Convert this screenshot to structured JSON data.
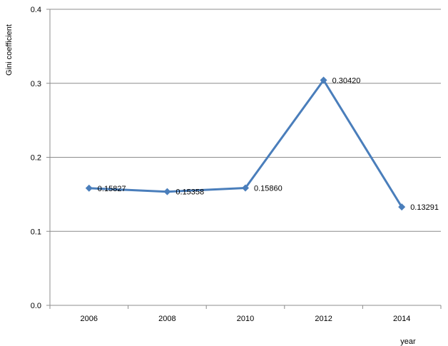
{
  "chart_data": {
    "type": "line",
    "categories": [
      "2006",
      "2008",
      "2010",
      "2012",
      "2014"
    ],
    "series": [
      {
        "values": [
          0.15827,
          0.15358,
          0.1586,
          0.3042,
          0.13291
        ],
        "labels": [
          "0.15827",
          "0.15358",
          "0.15860",
          "0.30420",
          "0.13291"
        ]
      }
    ],
    "xlabel": "year",
    "ylabel": "Gini coefficient",
    "ylim": [
      0.0,
      0.4
    ],
    "yticks": [
      "0.0",
      "0.1",
      "0.2",
      "0.3",
      "0.4"
    ],
    "grid": true,
    "legend": "none",
    "line_color": "#4a7ebb",
    "grid_color": "#8c8c8c"
  }
}
